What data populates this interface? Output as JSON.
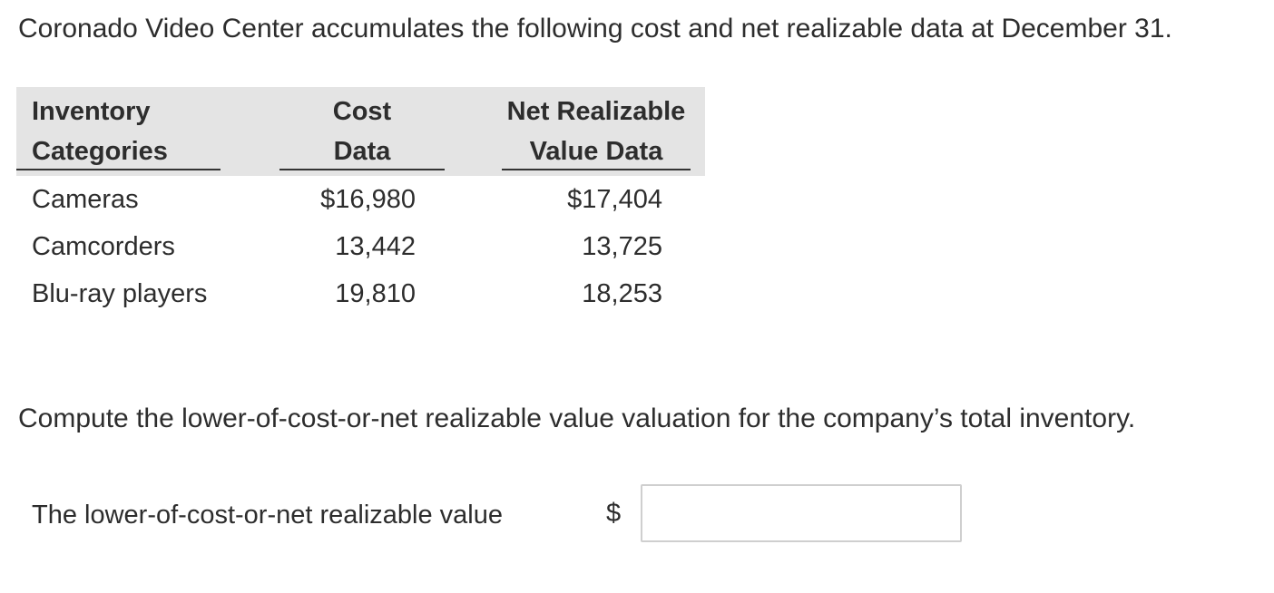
{
  "intro": "Coronado Video Center accumulates the following cost and net realizable data at December 31.",
  "table": {
    "headers": {
      "category": [
        "Inventory",
        "Categories"
      ],
      "cost": [
        "Cost",
        "Data"
      ],
      "nrv": [
        "Net Realizable",
        "Value Data"
      ]
    },
    "rows": [
      {
        "category": "Cameras",
        "cost": "$16,980",
        "nrv": "$17,404"
      },
      {
        "category": "Camcorders",
        "cost": "13,442",
        "nrv": "13,725"
      },
      {
        "category": "Blu-ray players",
        "cost": "19,810",
        "nrv": "18,253"
      }
    ]
  },
  "question": "Compute the lower-of-cost-or-net realizable value valuation for the company’s total inventory.",
  "answer": {
    "label": "The lower-of-cost-or-net realizable value",
    "currency": "$",
    "value": ""
  }
}
